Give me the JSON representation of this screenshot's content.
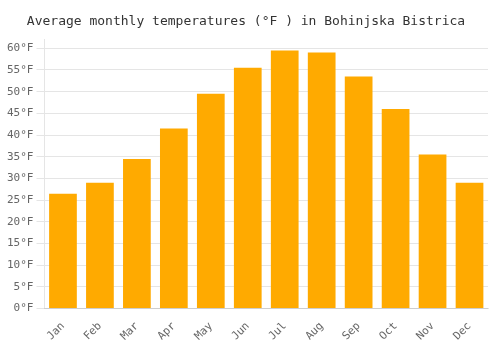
{
  "chart_data": {
    "type": "bar",
    "title": "Average monthly temperatures (°F ) in Bohinjska Bistrica",
    "categories": [
      "Jan",
      "Feb",
      "Mar",
      "Apr",
      "May",
      "Jun",
      "Jul",
      "Aug",
      "Sep",
      "Oct",
      "Nov",
      "Dec"
    ],
    "values": [
      26.5,
      29.0,
      34.5,
      41.5,
      49.5,
      55.5,
      59.5,
      59.0,
      53.5,
      46.0,
      35.5,
      29.0
    ],
    "color": "#FFAA00",
    "ylim": [
      0,
      62
    ],
    "yticks": [
      {
        "value": 0,
        "label": "0°F"
      },
      {
        "value": 5,
        "label": "5°F"
      },
      {
        "value": 10,
        "label": "10°F"
      },
      {
        "value": 15,
        "label": "15°F"
      },
      {
        "value": 20,
        "label": "20°F"
      },
      {
        "value": 25,
        "label": "25°F"
      },
      {
        "value": 30,
        "label": "30°F"
      },
      {
        "value": 35,
        "label": "35°F"
      },
      {
        "value": 40,
        "label": "40°F"
      },
      {
        "value": 45,
        "label": "45°F"
      },
      {
        "value": 50,
        "label": "50°F"
      },
      {
        "value": 55,
        "label": "55°F"
      },
      {
        "value": 60,
        "label": "60°F"
      }
    ],
    "grid": true
  }
}
